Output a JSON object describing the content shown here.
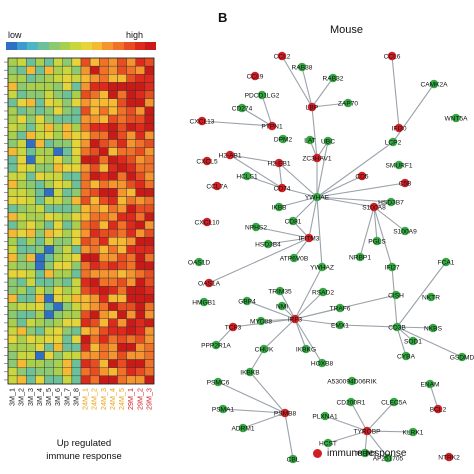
{
  "heatmap": {
    "legend_low": "low",
    "legend_high": "high",
    "colorbar": [
      "#2f6fc6",
      "#3c9bd0",
      "#4eb5c4",
      "#6cc09a",
      "#8cc970",
      "#a9cf4e",
      "#c9d63d",
      "#e6d53a",
      "#f5b934",
      "#f49530",
      "#f07128",
      "#e84d22",
      "#dd2a1c",
      "#c91a17"
    ],
    "columns": [
      {
        "label": "3M_1",
        "color": "#1a1a1a"
      },
      {
        "label": "3M_2",
        "color": "#1a1a1a"
      },
      {
        "label": "3M_3",
        "color": "#1a1a1a"
      },
      {
        "label": "3M_4",
        "color": "#1a1a1a"
      },
      {
        "label": "3M_5",
        "color": "#1a1a1a"
      },
      {
        "label": "3M_6",
        "color": "#1a1a1a"
      },
      {
        "label": "3M_7",
        "color": "#1a1a1a"
      },
      {
        "label": "3M_8",
        "color": "#1a1a1a"
      },
      {
        "label": "24M_1",
        "color": "#e8a317"
      },
      {
        "label": "24M_2",
        "color": "#e8a317"
      },
      {
        "label": "24M_3",
        "color": "#e8a317"
      },
      {
        "label": "24M_4",
        "color": "#e8a317"
      },
      {
        "label": "24M_5",
        "color": "#e8a317"
      },
      {
        "label": "29M_1",
        "color": "#d21f26"
      },
      {
        "label": "29M_2",
        "color": "#d21f26"
      },
      {
        "label": "29M_3",
        "color": "#d21f26"
      }
    ],
    "caption_line1": "Up regulated",
    "caption_line2": "immune response"
  },
  "network": {
    "panel_label": "B",
    "title": "Mouse",
    "legend_label": "immune response",
    "colors": {
      "immune": "#d21f26",
      "other": "#35a843",
      "edge": "#9aa2aa"
    },
    "nodes": [
      {
        "id": "CCL2",
        "t": "i"
      },
      {
        "id": "RAB38",
        "t": "o"
      },
      {
        "id": "RAB32",
        "t": "o"
      },
      {
        "id": "CCL6",
        "t": "i"
      },
      {
        "id": "CAMK2A",
        "t": "o"
      },
      {
        "id": "CCL9",
        "t": "i"
      },
      {
        "id": "PDCD1LG2",
        "t": "o"
      },
      {
        "id": "CD274",
        "t": "o"
      },
      {
        "id": "ZAP70",
        "t": "o"
      },
      {
        "id": "LBP",
        "t": "i"
      },
      {
        "id": "CXCL13",
        "t": "i"
      },
      {
        "id": "PTPN1",
        "t": "i"
      },
      {
        "id": "WNT5A",
        "t": "o"
      },
      {
        "id": "IFI30",
        "t": "i"
      },
      {
        "id": "DPM2",
        "t": "o"
      },
      {
        "id": "LAT",
        "t": "o"
      },
      {
        "id": "UBC",
        "t": "o"
      },
      {
        "id": "LCP2",
        "t": "o"
      },
      {
        "id": "ZC3HAV1",
        "t": "i"
      },
      {
        "id": "H2-AB1",
        "t": "i"
      },
      {
        "id": "H2-EB1",
        "t": "i"
      },
      {
        "id": "CXCL5",
        "t": "i"
      },
      {
        "id": "SMURF1",
        "t": "o"
      },
      {
        "id": "HCLS1",
        "t": "o"
      },
      {
        "id": "CCL7A",
        "t": "i"
      },
      {
        "id": "CD74",
        "t": "i"
      },
      {
        "id": "CD5",
        "t": "i"
      },
      {
        "id": "C5B",
        "t": "i"
      },
      {
        "id": "YWHAE",
        "t": "o"
      },
      {
        "id": "HSD3B7",
        "t": "o"
      },
      {
        "id": "S100A8",
        "t": "i"
      },
      {
        "id": "IKBB",
        "t": "o"
      },
      {
        "id": "S100A9",
        "t": "o"
      },
      {
        "id": "CXCL10",
        "t": "i"
      },
      {
        "id": "NPHS2",
        "t": "o"
      },
      {
        "id": "CD81",
        "t": "o"
      },
      {
        "id": "HSD3B4",
        "t": "o"
      },
      {
        "id": "IFITM3",
        "t": "i"
      },
      {
        "id": "ATP6V0B",
        "t": "o"
      },
      {
        "id": "PGLS",
        "t": "o"
      },
      {
        "id": "NRBP1",
        "t": "o"
      },
      {
        "id": "OAS1D",
        "t": "o"
      },
      {
        "id": "YWHAZ",
        "t": "o"
      },
      {
        "id": "IFI27",
        "t": "o"
      },
      {
        "id": "FCA1",
        "t": "o"
      },
      {
        "id": "OAS1A",
        "t": "i"
      },
      {
        "id": "TRIM35",
        "t": "o"
      },
      {
        "id": "RSAD2",
        "t": "o"
      },
      {
        "id": "HMGB1",
        "t": "o"
      },
      {
        "id": "GBP4",
        "t": "o"
      },
      {
        "id": "NMI",
        "t": "o"
      },
      {
        "id": "TRAF6",
        "t": "o"
      },
      {
        "id": "CISH",
        "t": "o"
      },
      {
        "id": "NKTR",
        "t": "o"
      },
      {
        "id": "MYD88",
        "t": "o"
      },
      {
        "id": "TCF3",
        "t": "i"
      },
      {
        "id": "IRF3",
        "t": "i"
      },
      {
        "id": "EMX1",
        "t": "o"
      },
      {
        "id": "NKBS",
        "t": "o"
      },
      {
        "id": "CD3B",
        "t": "o"
      },
      {
        "id": "SOD1",
        "t": "o"
      },
      {
        "id": "PPP2R1A",
        "t": "o"
      },
      {
        "id": "CHUK",
        "t": "o"
      },
      {
        "id": "IKBKG",
        "t": "o"
      },
      {
        "id": "CYBA",
        "t": "o"
      },
      {
        "id": "GSDMD",
        "t": "o"
      },
      {
        "id": "HOXB8",
        "t": "o"
      },
      {
        "id": "IKBKB",
        "t": "o"
      },
      {
        "id": "A530094D06RIK",
        "t": "o"
      },
      {
        "id": "PSMC6",
        "t": "o"
      },
      {
        "id": "CD200R1",
        "t": "o"
      },
      {
        "id": "CLEC5A",
        "t": "o"
      },
      {
        "id": "ENAM",
        "t": "o"
      },
      {
        "id": "PSMA1",
        "t": "o"
      },
      {
        "id": "PSMB8",
        "t": "i"
      },
      {
        "id": "PLXNA1",
        "t": "o"
      },
      {
        "id": "BCL2",
        "t": "i"
      },
      {
        "id": "ADRM1",
        "t": "o"
      },
      {
        "id": "TYROBP",
        "t": "i"
      },
      {
        "id": "KLRK1",
        "t": "o"
      },
      {
        "id": "HCST",
        "t": "o"
      },
      {
        "id": "CBL",
        "t": "o"
      },
      {
        "id": "TREM3",
        "t": "o"
      },
      {
        "id": "AF251705",
        "t": "o"
      },
      {
        "id": "NTRK2",
        "t": "i"
      }
    ],
    "edges": [
      [
        "YWHAE",
        "H2-EB1"
      ],
      [
        "YWHAE",
        "CD74"
      ],
      [
        "YWHAE",
        "ZC3HAV1"
      ],
      [
        "YWHAE",
        "CD5"
      ],
      [
        "YWHAE",
        "HSD3B7"
      ],
      [
        "YWHAE",
        "IKBB"
      ],
      [
        "YWHAE",
        "CD81"
      ],
      [
        "YWHAE",
        "IFITM3"
      ],
      [
        "YWHAE",
        "YWHAZ"
      ],
      [
        "YWHAE",
        "S100A8"
      ],
      [
        "YWHAE",
        "LCP2"
      ],
      [
        "YWHAE",
        "C5B"
      ],
      [
        "YWHAE",
        "UBC"
      ],
      [
        "ZC3HAV1",
        "LAT"
      ],
      [
        "ZC3HAV1",
        "UBC"
      ],
      [
        "ZC3HAV1",
        "LBP"
      ],
      [
        "LBP",
        "RAB32"
      ],
      [
        "LBP",
        "ZAP70"
      ],
      [
        "LBP",
        "RAB38"
      ],
      [
        "LBP",
        "CCL2"
      ],
      [
        "CCL6",
        "IFI30"
      ],
      [
        "CAMK2A",
        "LCP2"
      ],
      [
        "PTPN1",
        "CD274"
      ],
      [
        "PTPN1",
        "PDCD1LG2"
      ],
      [
        "PTPN1",
        "CXCL13"
      ],
      [
        "H2-AB1",
        "H2-EB1"
      ],
      [
        "H2-AB1",
        "CD74"
      ],
      [
        "CD74",
        "HCLS1"
      ],
      [
        "CD74",
        "H2-EB1"
      ],
      [
        "S100A8",
        "S100A9"
      ],
      [
        "S100A8",
        "PGLS"
      ],
      [
        "S100A8",
        "NRBP1"
      ],
      [
        "S100A8",
        "IFI27"
      ],
      [
        "S100A8",
        "HSD3B7"
      ],
      [
        "IFITM3",
        "HSD3B4"
      ],
      [
        "IFITM3",
        "ATP6V0B"
      ],
      [
        "IFITM3",
        "NPHS2"
      ],
      [
        "IFITM3",
        "OAS1A"
      ],
      [
        "IFITM3",
        "CD81"
      ],
      [
        "YWHAZ",
        "IRF3"
      ],
      [
        "IRF3",
        "RSAD2"
      ],
      [
        "IRF3",
        "NMI"
      ],
      [
        "IRF3",
        "TRAF6"
      ],
      [
        "IRF3",
        "MYD88"
      ],
      [
        "IRF3",
        "TCF3"
      ],
      [
        "IRF3",
        "CISH"
      ],
      [
        "IRF3",
        "CHUK"
      ],
      [
        "IRF3",
        "IKBKG"
      ],
      [
        "IRF3",
        "EMX1"
      ],
      [
        "IRF3",
        "HOXB8"
      ],
      [
        "IRF3",
        "GBP4"
      ],
      [
        "IRF3",
        "TRIM35"
      ],
      [
        "CD3B",
        "NKBS"
      ],
      [
        "CD3B",
        "SOD1"
      ],
      [
        "CD3B",
        "CYBA"
      ],
      [
        "CD3B",
        "FCA1"
      ],
      [
        "CD3B",
        "IFI27"
      ],
      [
        "CD3B",
        "EMX1"
      ],
      [
        "CD3B",
        "GSDMD"
      ],
      [
        "PSMB8",
        "PSMA1"
      ],
      [
        "PSMB8",
        "PSMC6"
      ],
      [
        "PSMB8",
        "ADRM1"
      ],
      [
        "PSMB8",
        "CBL"
      ],
      [
        "PSMB8",
        "IKBKB"
      ],
      [
        "TYROBP",
        "CD200R1"
      ],
      [
        "TYROBP",
        "CLEC5A"
      ],
      [
        "TYROBP",
        "KLRK1"
      ],
      [
        "TYROBP",
        "HCST"
      ],
      [
        "TYROBP",
        "TREM3"
      ],
      [
        "TYROBP",
        "AF251705"
      ],
      [
        "TYROBP",
        "PLXNA1"
      ],
      [
        "BCL2",
        "ENAM"
      ],
      [
        "CHUK",
        "IKBKB"
      ],
      [
        "PPP2R1A",
        "TCF3"
      ]
    ]
  }
}
